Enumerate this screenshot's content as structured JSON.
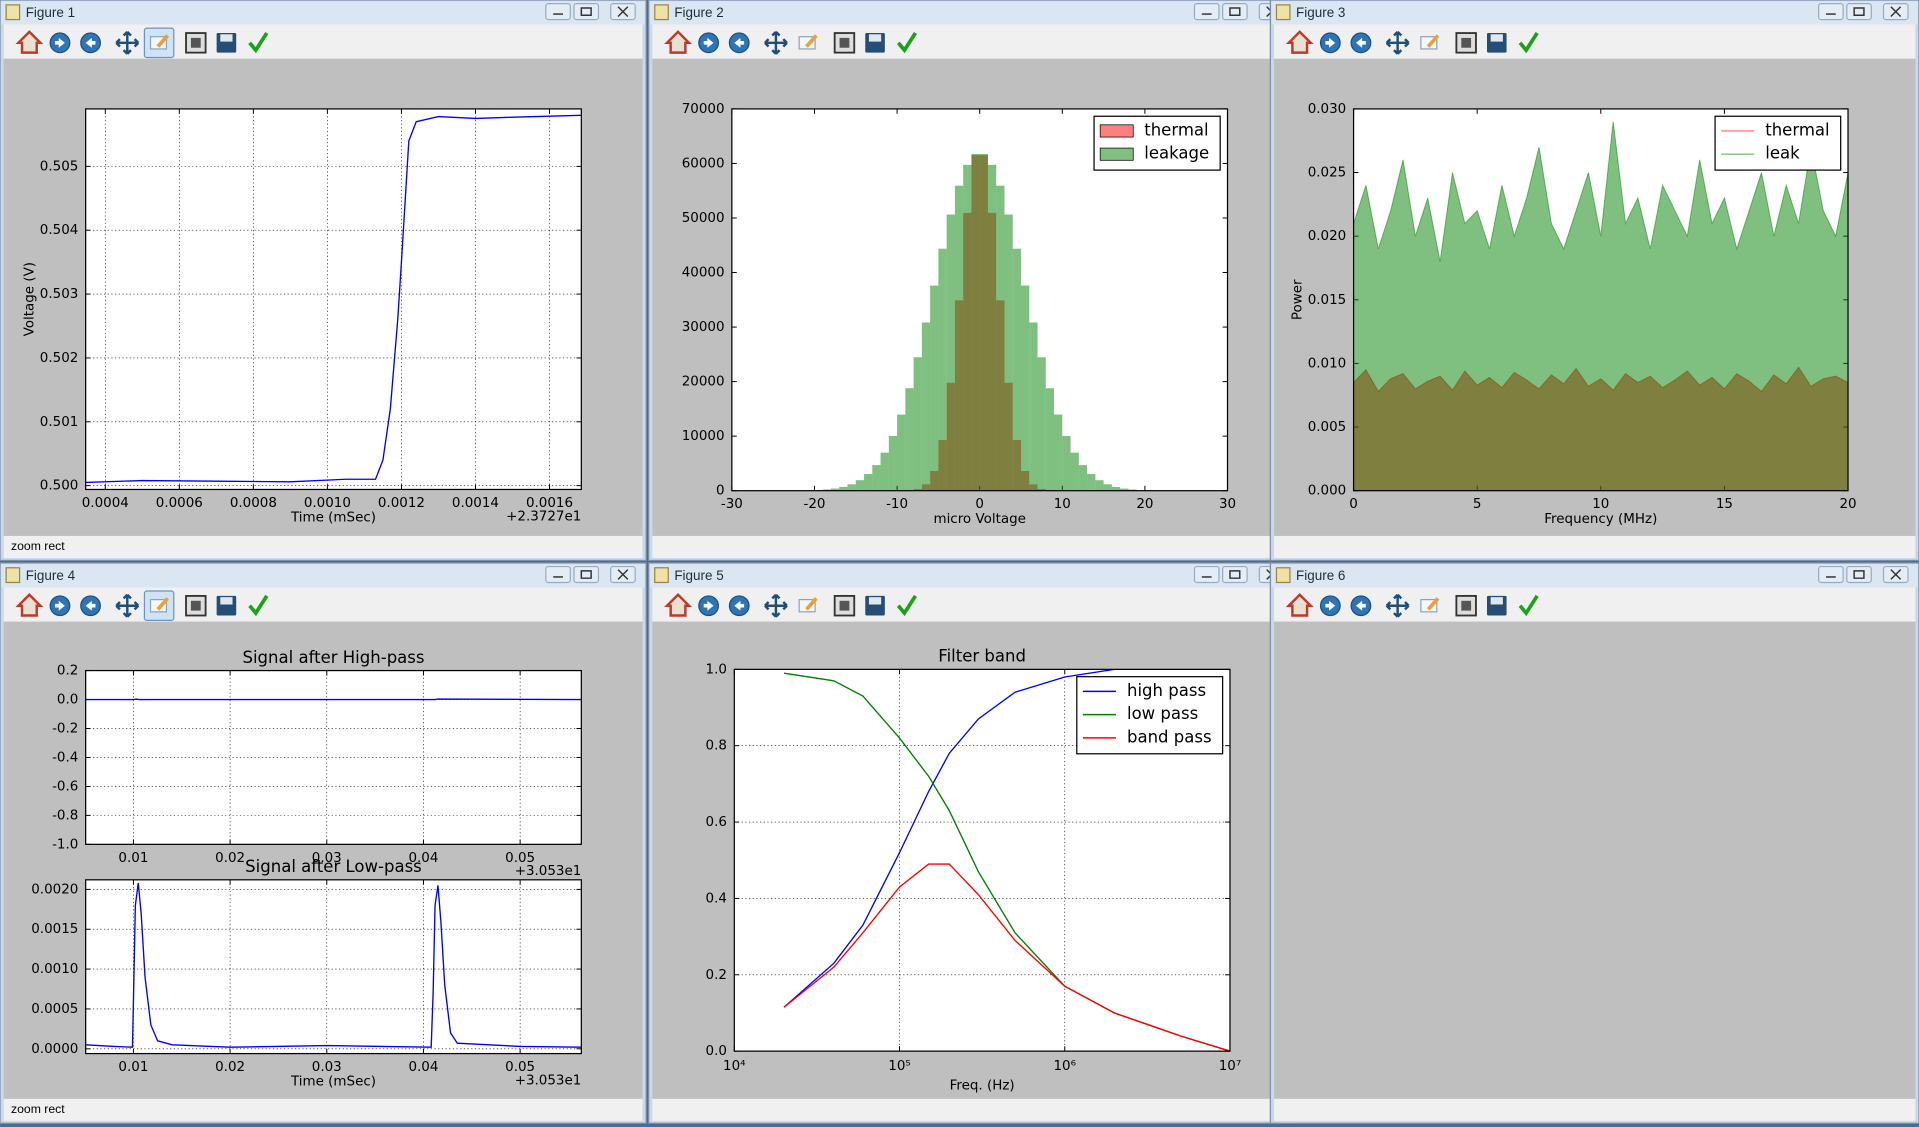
{
  "windows": [
    {
      "title": "Figure 1",
      "status": "zoom rect",
      "chart_data": [
        {
          "type": "line",
          "xlabel": "Time (mSec)",
          "ylabel": "Voltage (V)",
          "x_offset": "+2.3727e1",
          "color": "#0000ff",
          "grid": true,
          "x": [
            0.000347,
            0.0005,
            0.0007,
            0.0009,
            0.00105,
            0.00113,
            0.00115,
            0.00117,
            0.00119,
            0.0012,
            0.00122,
            0.00124,
            0.0013,
            0.0014,
            0.0015,
            0.001686
          ],
          "values": [
            0.50005,
            0.50008,
            0.50007,
            0.50006,
            0.5001,
            0.5001,
            0.5004,
            0.5012,
            0.5026,
            0.5035,
            0.5054,
            0.5057,
            0.50578,
            0.50575,
            0.50577,
            0.5058
          ],
          "xlim": [
            0.000347,
            0.001686
          ],
          "ylim": [
            0.49994,
            0.5059
          ],
          "xticks": [
            0.0004,
            0.0006,
            0.0008,
            {
              "value": 0.001,
              "label": "0.0010"
            },
            0.0012,
            0.0014,
            0.0016
          ],
          "yticks": [
            {
              "value": 0.5,
              "label": "0.500"
            },
            0.501,
            0.502,
            0.503,
            0.504,
            0.505
          ]
        }
      ]
    },
    {
      "title": "Figure 2",
      "chart_data": [
        {
          "type": "histogram",
          "xlabel": "micro Voltage",
          "alpha": 0.5,
          "legend": "upper right",
          "grid": false,
          "bins": [
            -22,
            -21,
            -20,
            -19,
            -18,
            -17,
            -16,
            -15,
            -14,
            -13,
            -12,
            -11,
            -10,
            -9,
            -8,
            -7,
            -6,
            -5,
            -4,
            -3,
            -2,
            -1,
            0,
            1,
            2,
            3,
            4,
            5,
            6,
            7,
            8,
            9,
            10,
            11,
            12,
            13,
            14,
            15,
            16,
            17,
            18,
            19,
            20,
            21,
            22
          ],
          "series": [
            {
              "name": "thermal",
              "color": "#ff0000",
              "values": [
                0,
                0,
                0,
                0,
                0,
                0,
                0,
                0,
                0,
                0,
                0,
                0,
                10,
                70,
                310,
                1160,
                3610,
                9290,
                19790,
                34900,
                50930,
                61530,
                61530,
                50930,
                34900,
                19790,
                9290,
                3610,
                1160,
                310,
                70,
                10,
                0,
                0,
                0,
                0,
                0,
                0,
                0,
                0,
                0,
                0,
                0,
                0
              ]
            },
            {
              "name": "leakage",
              "color": "#008000",
              "values": [
                30,
                60,
                120,
                220,
                390,
                690,
                1170,
                1920,
                3050,
                4690,
                6970,
                10030,
                13950,
                18790,
                24460,
                30840,
                37610,
                44370,
                50630,
                55920,
                59740,
                61740,
                61740,
                59740,
                55920,
                50630,
                44370,
                37610,
                30840,
                24460,
                18790,
                13950,
                10030,
                6970,
                4690,
                3050,
                1920,
                1170,
                690,
                390,
                220,
                120,
                60,
                30
              ]
            }
          ],
          "xlim": [
            -30,
            30
          ],
          "ylim": [
            0,
            70000
          ],
          "xticks": [
            -30,
            -20,
            -10,
            0,
            10,
            20,
            30
          ],
          "yticks": [
            0,
            10000,
            20000,
            30000,
            40000,
            50000,
            60000,
            70000
          ]
        }
      ]
    },
    {
      "title": "Figure 3",
      "chart_data": [
        {
          "type": "area",
          "xlabel": "Frequency (MHz)",
          "ylabel": "Power",
          "alpha": 0.5,
          "legend": "upper right",
          "grid": false,
          "x": [
            0,
            0.5,
            1,
            1.5,
            2,
            2.5,
            3,
            3.5,
            4,
            4.5,
            5,
            5.5,
            6,
            6.5,
            7,
            7.5,
            8,
            8.5,
            9,
            9.5,
            10,
            10.5,
            11,
            11.5,
            12,
            12.5,
            13,
            13.5,
            14,
            14.5,
            15,
            15.5,
            16,
            16.5,
            17,
            17.5,
            18,
            18.5,
            19,
            19.5,
            20
          ],
          "series": [
            {
              "name": "thermal",
              "color": "#ff0000",
              "values": [
                0.0085,
                0.0095,
                0.0078,
                0.0088,
                0.0092,
                0.008,
                0.0086,
                0.009,
                0.0079,
                0.0094,
                0.0083,
                0.0089,
                0.0081,
                0.0093,
                0.0087,
                0.008,
                0.0091,
                0.0084,
                0.0096,
                0.0082,
                0.0088,
                0.0079,
                0.0092,
                0.0085,
                0.009,
                0.0081,
                0.0087,
                0.0094,
                0.0083,
                0.0089,
                0.008,
                0.0092,
                0.0086,
                0.0078,
                0.0091,
                0.0084,
                0.0097,
                0.0082,
                0.0088,
                0.009,
                0.0085
              ]
            },
            {
              "name": "leak",
              "color": "#008000",
              "values": [
                0.021,
                0.024,
                0.019,
                0.022,
                0.026,
                0.02,
                0.023,
                0.018,
                0.025,
                0.021,
                0.022,
                0.019,
                0.024,
                0.02,
                0.023,
                0.027,
                0.021,
                0.019,
                0.022,
                0.025,
                0.02,
                0.029,
                0.021,
                0.023,
                0.019,
                0.024,
                0.022,
                0.02,
                0.026,
                0.021,
                0.023,
                0.019,
                0.022,
                0.025,
                0.02,
                0.024,
                0.021,
                0.027,
                0.022,
                0.02,
                0.025
              ]
            }
          ],
          "xlim": [
            0,
            20
          ],
          "ylim": [
            0,
            0.03
          ],
          "xticks": [
            0,
            5,
            10,
            15,
            20
          ],
          "yticks": [
            {
              "value": 0,
              "label": "0.000"
            },
            0.005,
            {
              "value": 0.01,
              "label": "0.010"
            },
            0.015,
            {
              "value": 0.02,
              "label": "0.020"
            },
            0.025,
            {
              "value": 0.03,
              "label": "0.030"
            }
          ]
        }
      ]
    },
    {
      "title": "Figure 4",
      "status": "zoom rect",
      "chart_data": [
        {
          "type": "line",
          "title": "Signal after High-pass",
          "x_offset": "+3.053e1",
          "color": "#0000ff",
          "grid": true,
          "x": [
            0.00506,
            0.01,
            0.0103,
            0.0106,
            0.04,
            0.0412,
            0.0415,
            0.05633
          ],
          "values": [
            0,
            0,
            0.003,
            0,
            0,
            0,
            0.003,
            0
          ],
          "xlim": [
            0.00506,
            0.05633
          ],
          "ylim": [
            -1,
            0.2
          ],
          "xticks": [
            0.01,
            0.02,
            0.03,
            0.04,
            0.05
          ],
          "yticks": [
            {
              "value": -1,
              "label": "-1.0"
            },
            -0.8,
            -0.6,
            -0.4,
            -0.2,
            {
              "value": 0,
              "label": "0.0"
            },
            0.2
          ]
        },
        {
          "type": "line",
          "title": "Signal after Low-pass",
          "xlabel": "Time (mSec)",
          "x_offset": "+3.053e1",
          "color": "#0000ff",
          "grid": true,
          "x": [
            0.00506,
            0.008,
            0.0099,
            0.01,
            0.0102,
            0.0105,
            0.0108,
            0.0112,
            0.0118,
            0.0125,
            0.014,
            0.02,
            0.03,
            0.0408,
            0.041,
            0.0412,
            0.0415,
            0.0418,
            0.0422,
            0.0428,
            0.0435,
            0.05,
            0.05633
          ],
          "values": [
            5e-05,
            3e-05,
            2e-05,
            0.0006,
            0.0018,
            0.00208,
            0.0017,
            0.0009,
            0.0003,
            0.0001,
            5e-05,
            2e-05,
            4e-05,
            2e-05,
            0.0007,
            0.0018,
            0.00205,
            0.0016,
            0.0008,
            0.0002,
            7e-05,
            3e-05,
            2e-05
          ],
          "xlim": [
            0.00506,
            0.05633
          ],
          "ylim": [
            -6e-05,
            0.00212
          ],
          "xticks": [
            0.01,
            0.02,
            0.03,
            0.04,
            0.05
          ],
          "yticks": [
            {
              "value": 0,
              "label": "0.0000"
            },
            0.0005,
            {
              "value": 0.001,
              "label": "0.0010"
            },
            0.0015,
            {
              "value": 0.002,
              "label": "0.0020"
            }
          ]
        }
      ]
    },
    {
      "title": "Figure 5",
      "chart_data": [
        {
          "type": "line",
          "title": "Filter band",
          "xlabel": "Freq. (Hz)",
          "log_x": true,
          "legend": "upper right",
          "grid": true,
          "x": [
            20000,
            40000,
            60000,
            100000,
            150000,
            200000,
            300000,
            500000,
            1000000,
            2000000,
            5000000,
            10000000
          ],
          "series": [
            {
              "name": "high pass",
              "color": "#0000ff",
              "values": [
                0.115,
                0.23,
                0.33,
                0.52,
                0.68,
                0.78,
                0.87,
                0.94,
                0.98,
                1,
                1,
                1
              ]
            },
            {
              "name": "low pass",
              "color": "#008000",
              "values": [
                0.99,
                0.97,
                0.93,
                0.82,
                0.72,
                0.63,
                0.47,
                0.31,
                0.17,
                0.1,
                0.04,
                0
              ]
            },
            {
              "name": "band pass",
              "color": "#ff0000",
              "values": [
                0.115,
                0.22,
                0.31,
                0.43,
                0.49,
                0.49,
                0.41,
                0.29,
                0.17,
                0.1,
                0.04,
                0
              ]
            }
          ],
          "xlim": [
            10000,
            10000000
          ],
          "ylim": [
            0,
            1
          ],
          "xticks": [
            {
              "value": 10000,
              "label": "10⁴"
            },
            {
              "value": 100000,
              "label": "10⁵"
            },
            {
              "value": 1000000,
              "label": "10⁶"
            },
            {
              "value": 10000000,
              "label": "10⁷"
            }
          ],
          "yticks": [
            {
              "value": 0,
              "label": "0.0"
            },
            0.2,
            0.4,
            0.6,
            0.8,
            {
              "value": 1,
              "label": "1.0"
            }
          ]
        }
      ]
    },
    {
      "title": "Figure 6"
    }
  ]
}
